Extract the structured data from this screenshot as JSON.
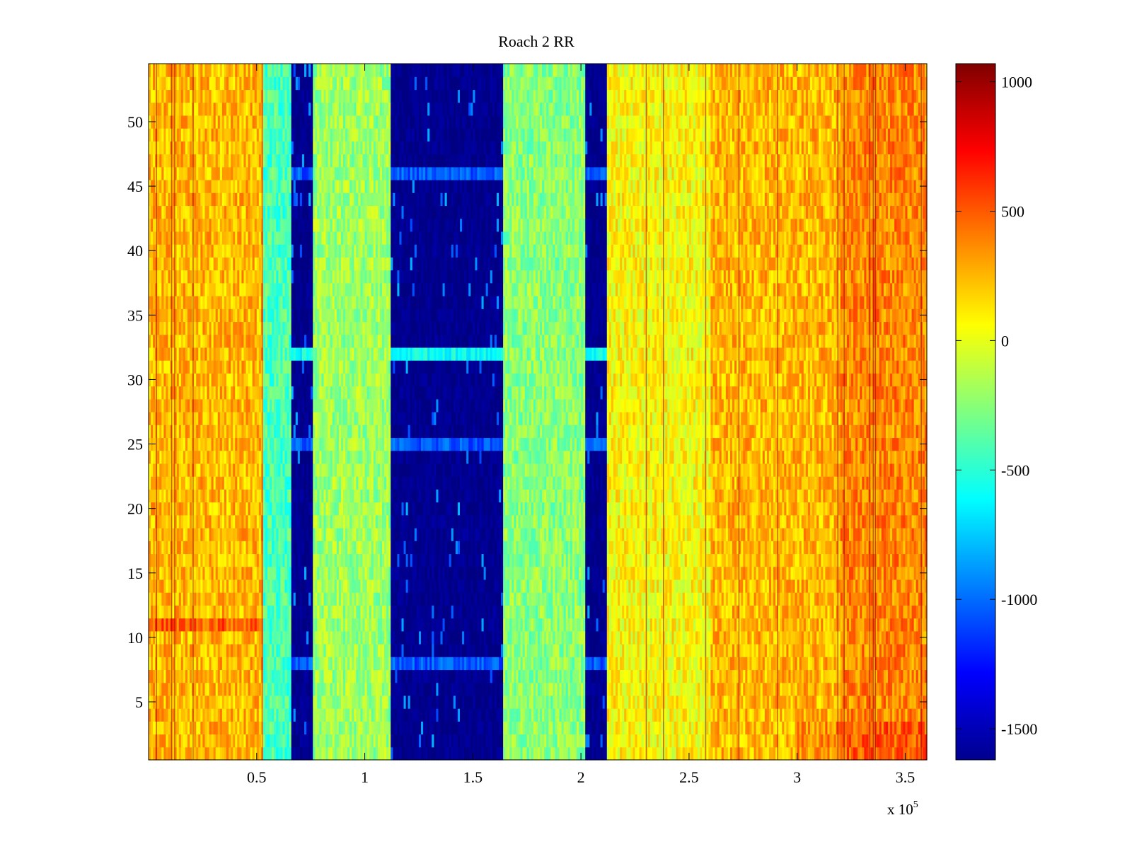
{
  "chart_data": {
    "type": "heatmap",
    "title": "Roach 2 RR",
    "xlabel": "",
    "ylabel": "",
    "x_multiplier_label": "x 10",
    "x_multiplier_exponent": "5",
    "xlim": [
      0,
      360000
    ],
    "ylim": [
      0.5,
      54.5
    ],
    "x_ticks": [
      {
        "value": 50000,
        "label": "0.5"
      },
      {
        "value": 100000,
        "label": "1"
      },
      {
        "value": 150000,
        "label": "1.5"
      },
      {
        "value": 200000,
        "label": "2"
      },
      {
        "value": 250000,
        "label": "2.5"
      },
      {
        "value": 300000,
        "label": "3"
      },
      {
        "value": 350000,
        "label": "3.5"
      }
    ],
    "y_ticks": [
      {
        "value": 5,
        "label": "5"
      },
      {
        "value": 10,
        "label": "10"
      },
      {
        "value": 15,
        "label": "15"
      },
      {
        "value": 20,
        "label": "20"
      },
      {
        "value": 25,
        "label": "25"
      },
      {
        "value": 30,
        "label": "30"
      },
      {
        "value": 35,
        "label": "35"
      },
      {
        "value": 40,
        "label": "40"
      },
      {
        "value": 45,
        "label": "45"
      },
      {
        "value": 50,
        "label": "50"
      }
    ],
    "colorbar": {
      "colormap": "jet",
      "range": [
        -1620,
        1070
      ],
      "ticks": [
        {
          "value": 1000,
          "label": "1000"
        },
        {
          "value": 500,
          "label": "500"
        },
        {
          "value": 0,
          "label": "0"
        },
        {
          "value": -500,
          "label": "-500"
        },
        {
          "value": -1000,
          "label": "-1000"
        },
        {
          "value": -1500,
          "label": "-1500"
        }
      ]
    },
    "rows": 54,
    "column_bands": [
      {
        "x_start": 0,
        "x_end": 53000,
        "level": 250
      },
      {
        "x_start": 53000,
        "x_end": 66000,
        "level": -420
      },
      {
        "x_start": 66000,
        "x_end": 76000,
        "level": -1600
      },
      {
        "x_start": 76000,
        "x_end": 112000,
        "level": -200
      },
      {
        "x_start": 112000,
        "x_end": 164000,
        "level": -1600
      },
      {
        "x_start": 164000,
        "x_end": 202000,
        "level": -250
      },
      {
        "x_start": 202000,
        "x_end": 212000,
        "level": -1600
      },
      {
        "x_start": 212000,
        "x_end": 260000,
        "level": 60
      },
      {
        "x_start": 260000,
        "x_end": 320000,
        "level": 250
      },
      {
        "x_start": 320000,
        "x_end": 360000,
        "level": 380
      }
    ],
    "notable_rows": [
      {
        "y": 32,
        "note": "lighter band across dark columns (~ -700)"
      },
      {
        "y": 46,
        "note": "lighter streak in dark columns (~ -1050)"
      },
      {
        "y": 11,
        "note": "warmer row at left (~ 500)"
      }
    ]
  }
}
